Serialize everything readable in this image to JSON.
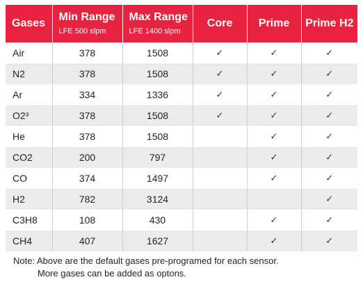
{
  "header": {
    "gases": "Gases",
    "min_range": "Min Range",
    "min_sub": "LFE 500 slpm",
    "max_range": "Max Range",
    "max_sub": "LFE 1400 slpm",
    "core": "Core",
    "prime": "Prime",
    "prime_h2": "Prime H2"
  },
  "check_symbol": "✓",
  "rows": [
    {
      "gas": "Air",
      "min": "378",
      "max": "1508",
      "core": "✓",
      "prime": "✓",
      "prime_h2": "✓"
    },
    {
      "gas": "N2",
      "min": "378",
      "max": "1508",
      "core": "✓",
      "prime": "✓",
      "prime_h2": "✓"
    },
    {
      "gas": "Ar",
      "min": "334",
      "max": "1336",
      "core": "✓",
      "prime": "✓",
      "prime_h2": "✓"
    },
    {
      "gas": "O2³",
      "min": "378",
      "max": "1508",
      "core": "✓",
      "prime": "✓",
      "prime_h2": "✓"
    },
    {
      "gas": "He",
      "min": "378",
      "max": "1508",
      "core": "",
      "prime": "✓",
      "prime_h2": "✓"
    },
    {
      "gas": "CO2",
      "min": "200",
      "max": "797",
      "core": "",
      "prime": "✓",
      "prime_h2": "✓"
    },
    {
      "gas": "CO",
      "min": "374",
      "max": "1497",
      "core": "",
      "prime": "✓",
      "prime_h2": "✓"
    },
    {
      "gas": "H2",
      "min": "782",
      "max": "3124",
      "core": "",
      "prime": "",
      "prime_h2": "✓"
    },
    {
      "gas": "C3H8",
      "min": "108",
      "max": "430",
      "core": "",
      "prime": "✓",
      "prime_h2": "✓"
    },
    {
      "gas": "CH4",
      "min": "407",
      "max": "1627",
      "core": "",
      "prime": "✓",
      "prime_h2": "✓"
    }
  ],
  "note": {
    "line1": "Note: Above are the default gases pre-programed for each sensor.",
    "line2": "More gases can be added as optons."
  },
  "colors": {
    "header_bg": "#e8233f",
    "header_text": "#ffffff",
    "row_alt_bg": "#ececec"
  }
}
